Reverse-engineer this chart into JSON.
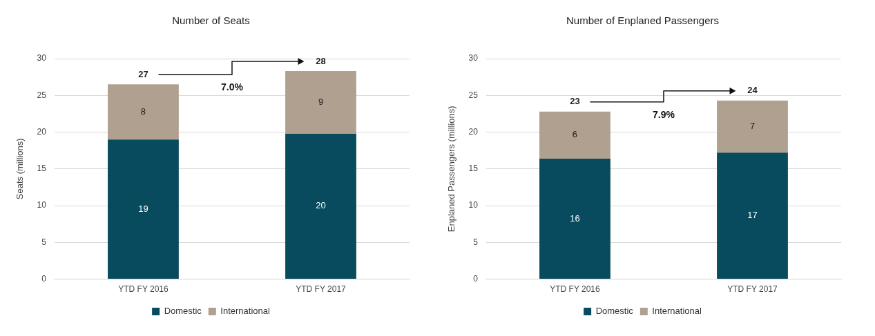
{
  "chart_data": [
    {
      "type": "bar",
      "title": "Number of Seats",
      "ylabel": "Seats (millions)",
      "categories": [
        "YTD FY 2016",
        "YTD FY 2017"
      ],
      "stacked": true,
      "series": [
        {
          "name": "Domestic",
          "color": "#084b5e",
          "values": [
            19.0,
            19.8
          ],
          "value_labels": [
            "19",
            "20"
          ]
        },
        {
          "name": "International",
          "color": "#b0a08f",
          "values": [
            7.5,
            8.5
          ],
          "value_labels": [
            "8",
            "9"
          ]
        }
      ],
      "totals": [
        "27",
        "28"
      ],
      "annotations": [
        "7.0%"
      ],
      "ylim": [
        0,
        30
      ],
      "yticks": [
        0,
        5,
        10,
        15,
        20,
        25,
        30
      ],
      "grid": "y",
      "legend": "bottom"
    },
    {
      "type": "bar",
      "title": "Number of Enplaned Passengers",
      "ylabel": "Enplaned Passengers (millions)",
      "categories": [
        "YTD FY 2016",
        "YTD FY 2017"
      ],
      "stacked": true,
      "series": [
        {
          "name": "Domestic",
          "color": "#084b5e",
          "values": [
            16.4,
            17.2
          ],
          "value_labels": [
            "16",
            "17"
          ]
        },
        {
          "name": "International",
          "color": "#b0a08f",
          "values": [
            6.4,
            7.1
          ],
          "value_labels": [
            "6",
            "7"
          ]
        }
      ],
      "totals": [
        "23",
        "24"
      ],
      "annotations": [
        "7.9%"
      ],
      "ylim": [
        0,
        30
      ],
      "yticks": [
        0,
        5,
        10,
        15,
        20,
        25,
        30
      ],
      "grid": "y",
      "legend": "bottom"
    }
  ]
}
